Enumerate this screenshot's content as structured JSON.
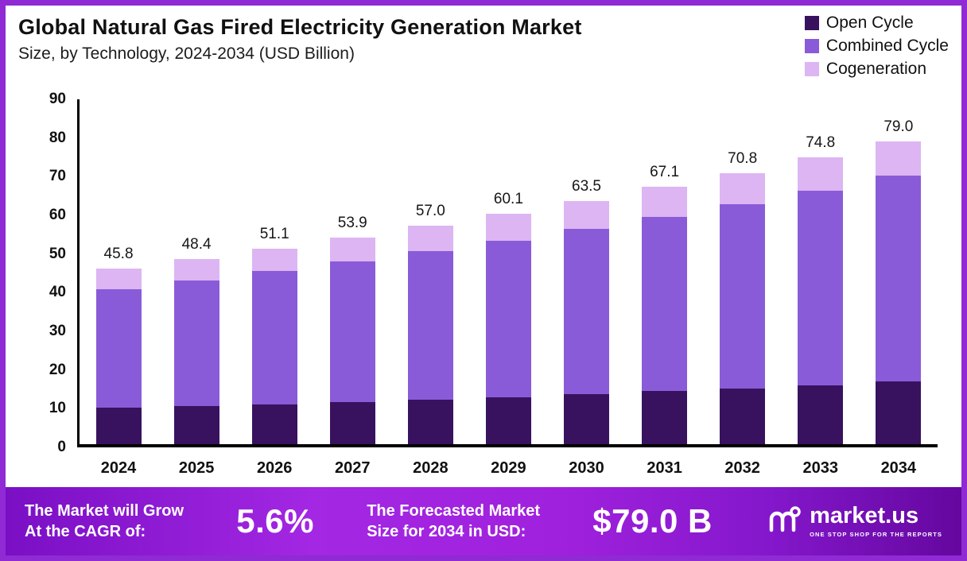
{
  "title": "Global Natural Gas Fired Electricity Generation Market",
  "subtitle": "Size, by Technology, 2024-2034 (USD Billion)",
  "colors": {
    "open_cycle": "#38125f",
    "combined_cycle": "#8a5bd8",
    "cogeneration": "#dcb5f2",
    "border": "#8f2ad4",
    "axis": "#000000"
  },
  "legend": [
    {
      "label": "Open Cycle",
      "color": "#38125f"
    },
    {
      "label": "Combined Cycle",
      "color": "#8a5bd8"
    },
    {
      "label": "Cogeneration",
      "color": "#dcb5f2"
    }
  ],
  "chart_data": {
    "type": "bar",
    "stacked": true,
    "title": "Global Natural Gas Fired Electricity Generation Market",
    "subtitle": "Size, by Technology, 2024-2034 (USD Billion)",
    "unit": "USD Billion",
    "categories": [
      "2024",
      "2025",
      "2026",
      "2027",
      "2028",
      "2029",
      "2030",
      "2031",
      "2032",
      "2033",
      "2034"
    ],
    "series": [
      {
        "name": "Open Cycle",
        "color": "#38125f",
        "values": [
          9.5,
          10.0,
          10.4,
          11.0,
          11.6,
          12.3,
          13.0,
          13.8,
          14.6,
          15.4,
          16.3
        ]
      },
      {
        "name": "Combined Cycle",
        "color": "#8a5bd8",
        "values": [
          31.0,
          32.8,
          34.8,
          36.7,
          38.8,
          40.8,
          43.2,
          45.6,
          48.1,
          50.8,
          53.7
        ]
      },
      {
        "name": "Cogeneration",
        "color": "#dcb5f2",
        "values": [
          5.3,
          5.6,
          5.9,
          6.2,
          6.6,
          7.0,
          7.3,
          7.7,
          8.1,
          8.6,
          9.0
        ]
      }
    ],
    "totals": [
      45.8,
      48.4,
      51.1,
      53.9,
      57.0,
      60.1,
      63.5,
      67.1,
      70.8,
      74.8,
      79.0
    ],
    "totals_labels": [
      "45.8",
      "48.4",
      "51.1",
      "53.9",
      "57.0",
      "60.1",
      "63.5",
      "67.1",
      "70.8",
      "74.8",
      "79.0"
    ],
    "ylim": [
      0,
      90
    ],
    "yticks": [
      0,
      10,
      20,
      30,
      40,
      50,
      60,
      70,
      80,
      90
    ],
    "grid": false,
    "legend_position": "top-right"
  },
  "footer": {
    "cagr": {
      "line1": "The Market will Grow",
      "line2": "At the CAGR of:",
      "value": "5.6%"
    },
    "forecast": {
      "line1": "The Forecasted Market",
      "line2": "Size for 2034 in USD:",
      "value": "$79.0 B"
    },
    "brand": {
      "name": "market.us",
      "tagline": "ONE STOP SHOP FOR THE REPORTS"
    }
  }
}
